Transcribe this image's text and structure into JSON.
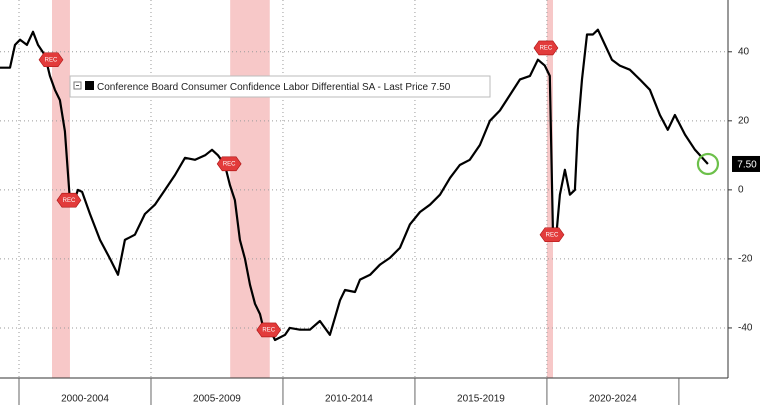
{
  "chart_data": {
    "type": "line",
    "series": [
      {
        "name": "Conference Board Consumer Confidence Labor Differential SA",
        "color": "#000000",
        "x": [
          1999.28,
          1999.66,
          1999.85,
          2000.04,
          2000.3,
          2000.53,
          2000.72,
          2000.98,
          2001.17,
          2001.36,
          2001.55,
          2001.74,
          2001.93,
          2002.05,
          2002.23,
          2002.39,
          2002.69,
          2003.07,
          2003.45,
          2003.75,
          2004.01,
          2004.39,
          2004.77,
          2005.15,
          2005.53,
          2005.91,
          2006.29,
          2006.67,
          2007.05,
          2007.31,
          2007.54,
          2007.8,
          2007.99,
          2008.18,
          2008.37,
          2008.56,
          2008.75,
          2008.94,
          2009.13,
          2009.32,
          2009.51,
          2009.7,
          2010.08,
          2010.26,
          2010.64,
          2011.02,
          2011.4,
          2011.78,
          2011.97,
          2012.16,
          2012.35,
          2012.73,
          2012.92,
          2013.3,
          2013.67,
          2014.05,
          2014.43,
          2014.81,
          2015.19,
          2015.57,
          2015.95,
          2016.33,
          2016.7,
          2017.08,
          2017.46,
          2017.84,
          2018.22,
          2018.6,
          2018.98,
          2019.36,
          2019.66,
          2019.92,
          2020.11,
          2020.23,
          2020.34,
          2020.49,
          2020.68,
          2020.87,
          2021.06,
          2021.17,
          2021.33,
          2021.52,
          2021.74,
          2021.93,
          2022.2,
          2022.46,
          2022.76,
          2023.14,
          2023.52,
          2023.9,
          2024.28,
          2024.58,
          2024.85,
          2025.23,
          2025.61,
          2025.8,
          2026.1
        ],
        "values": [
          35.4,
          35.4,
          42,
          43.5,
          42,
          45.8,
          42,
          39,
          33,
          29,
          26,
          17,
          -3,
          -4.3,
          0,
          -0.6,
          -7,
          -14.5,
          -20,
          -24.6,
          -14.5,
          -13,
          -7,
          -4.3,
          0,
          4.3,
          9.3,
          8.7,
          10,
          11.6,
          10,
          7.2,
          1.4,
          -3,
          -14.5,
          -20,
          -27.5,
          -33,
          -36,
          -42,
          -40.5,
          -43.5,
          -42,
          -40,
          -40.5,
          -40.5,
          -38,
          -42,
          -37,
          -32,
          -29,
          -29.6,
          -26,
          -24.6,
          -21.7,
          -19.7,
          -16.8,
          -10,
          -6.4,
          -4.3,
          -1.4,
          3.5,
          7.2,
          8.7,
          13,
          20,
          23,
          27.5,
          32,
          33,
          37.7,
          36,
          33,
          -13,
          -14.5,
          -1.4,
          5.8,
          -1.4,
          0,
          17.4,
          32,
          45,
          45,
          46.4,
          42,
          37.7,
          36,
          34.8,
          32,
          29,
          21.7,
          17.4,
          21.7,
          16,
          11.6,
          10,
          7.5
        ]
      }
    ],
    "last_price_caption": "- Last Price",
    "last_value": 7.5,
    "last_value_label": "7.50",
    "recessions": [
      {
        "start": 2001.25,
        "end": 2001.93,
        "label": "REC"
      },
      {
        "start": 2008.0,
        "end": 2009.5,
        "label": "REC"
      },
      {
        "start": 2020.0,
        "end": 2020.23,
        "label": "REC"
      }
    ],
    "x_periods": [
      {
        "label": "2000-2004",
        "start": 2000,
        "end": 2005
      },
      {
        "label": "2005-2009",
        "start": 2005,
        "end": 2010
      },
      {
        "label": "2010-2014",
        "start": 2010,
        "end": 2015
      },
      {
        "label": "2015-2019",
        "start": 2015,
        "end": 2020
      },
      {
        "label": "2020-2024",
        "start": 2020,
        "end": 2025
      }
    ],
    "xlim": [
      1999.28,
      2026.86
    ],
    "ylim": [
      -54.5,
      55
    ],
    "yticks": [
      -40,
      -20,
      0,
      20,
      40
    ],
    "grid": true
  }
}
